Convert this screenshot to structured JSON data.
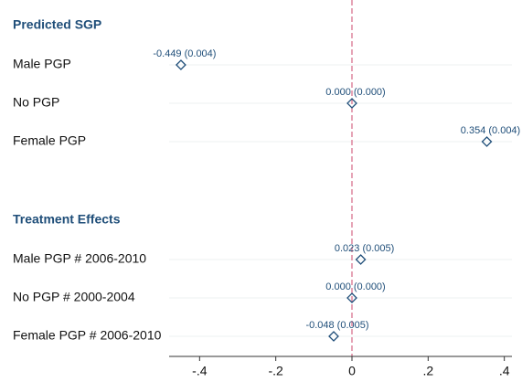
{
  "chart_data": {
    "type": "dot",
    "groups": [
      {
        "title": "Predicted SGP",
        "categories": [
          "Male PGP",
          "No PGP",
          "Female PGP"
        ],
        "values": [
          -0.449,
          0.0,
          0.354
        ],
        "value_labels": [
          "-0.449 (0.004)",
          "0.000 (0.000)",
          "0.354 (0.004)"
        ]
      },
      {
        "title": "Treatment Effects",
        "categories": [
          "Male PGP # 2006-2010",
          "No PGP # 2000-2004",
          "Female PGP # 2006-2010"
        ],
        "values": [
          0.023,
          0.0,
          -0.048
        ],
        "value_labels": [
          "0.023 (0.005)",
          "0.000 (0.000)",
          "-0.048 (0.005)"
        ]
      }
    ],
    "xlim": [
      -0.48,
      0.42
    ],
    "xticks": [
      {
        "value": -0.4,
        "label": "-.4"
      },
      {
        "value": -0.2,
        "label": "-.2"
      },
      0,
      {
        "value": 0.2,
        "label": ".2"
      },
      {
        "value": 0.4,
        "label": ".4"
      }
    ],
    "refline": 0,
    "color": "#1f4e79",
    "refline_color": "#d9738f",
    "grid": true
  }
}
